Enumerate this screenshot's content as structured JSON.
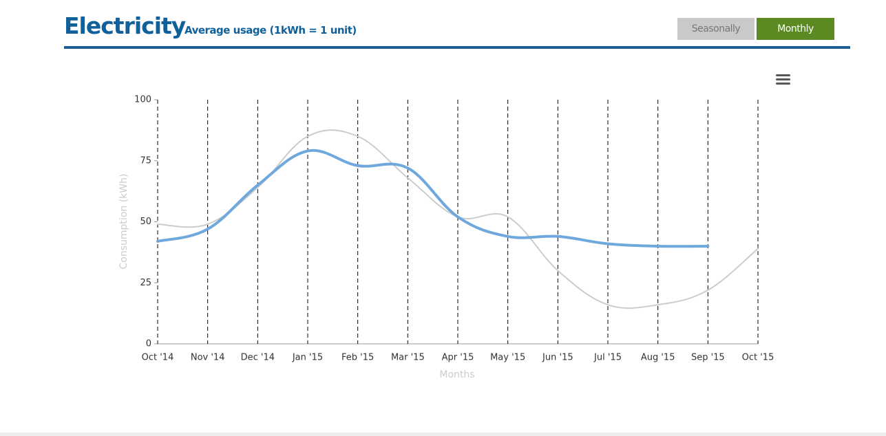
{
  "header": {
    "title": "Electricity",
    "subtitle": "Average usage (1kWh = 1 unit)"
  },
  "buttons": [
    "Seasonally",
    "Monthly"
  ],
  "chart_data": {
    "type": "line",
    "y_label": "Consumption (kWh)",
    "x_label": "Months",
    "categories": [
      "Oct '14",
      "Nov '14",
      "Dec '14",
      "Jan '15",
      "Feb '15",
      "Mar '15",
      "Apr '15",
      "May '15",
      "Jun '15",
      "Jul '15",
      "Aug '15",
      "Sep '15",
      "Oct '15"
    ],
    "series": [
      {
        "color": "#cccccc",
        "values": [
          49,
          49,
          64,
          85,
          85,
          68,
          52,
          52,
          30,
          16,
          16,
          22,
          39
        ]
      },
      {
        "color": "#6fa8dc",
        "values": [
          42,
          47,
          65,
          79,
          73,
          72,
          52,
          44,
          44,
          41,
          40,
          40,
          null
        ]
      }
    ],
    "ylim": [
      0,
      100
    ],
    "yticks": [
      0,
      25,
      50,
      75,
      100
    ],
    "grid": true
  }
}
